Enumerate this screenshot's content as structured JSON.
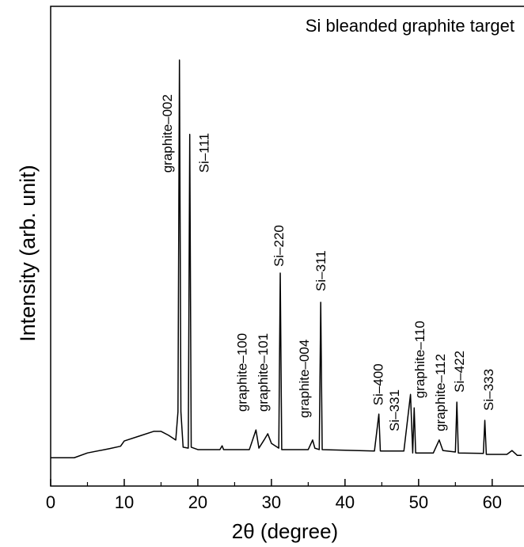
{
  "chart_data": {
    "type": "line",
    "title": "Si bleanded graphite target",
    "x_label": "2θ (degree)",
    "y_label": "Intensity (arb. unit)",
    "xlim": [
      0,
      64
    ],
    "ylim": [
      0,
      100
    ],
    "xticks": [
      0,
      10,
      20,
      30,
      40,
      50,
      60
    ],
    "xminorticks": [
      5,
      15,
      25,
      35,
      45,
      55
    ],
    "series": [
      {
        "color": "#000000",
        "x": [
          0,
          3.2,
          5,
          8,
          9.5,
          10,
          12,
          14,
          15,
          16,
          17,
          17.3,
          17.5,
          17.7,
          18,
          18.7,
          18.9,
          19.1,
          20,
          23,
          23.3,
          23.5,
          27,
          27.9,
          28.3,
          29,
          29.5,
          30,
          31,
          31.2,
          31.4,
          35,
          35.6,
          35.9,
          36.5,
          36.7,
          36.9,
          44,
          44.6,
          44.8,
          48,
          48.9,
          49.2,
          49.4,
          49.6,
          52,
          52.8,
          53.3,
          55,
          55.2,
          55.4,
          58.8,
          59,
          59.2,
          62,
          62.7,
          63.4,
          64
        ],
        "values": [
          5.9,
          5.9,
          6.9,
          7.8,
          8.3,
          9.4,
          10.4,
          11.4,
          11.4,
          10.6,
          9.6,
          15.5,
          88.8,
          15.5,
          8.1,
          7.9,
          73.3,
          8.1,
          7.6,
          7.6,
          8.4,
          7.6,
          7.6,
          11.7,
          7.9,
          9.6,
          10.9,
          8.9,
          7.9,
          44.4,
          7.6,
          7.6,
          9.6,
          7.9,
          7.6,
          38.3,
          7.6,
          7.3,
          15.0,
          7.3,
          7.3,
          19.1,
          6.9,
          16.3,
          6.9,
          6.9,
          9.6,
          7.4,
          7.1,
          17.5,
          6.9,
          6.8,
          13.7,
          6.6,
          6.6,
          7.4,
          6.4,
          6.4
        ]
      }
    ],
    "annotations": [
      {
        "text": "graphite–002",
        "x": 15.8,
        "y": 65.3
      },
      {
        "text": "Si–111",
        "x": 20.8,
        "y": 65.3
      },
      {
        "text": "graphite–100",
        "x": 26.0,
        "y": 15.5
      },
      {
        "text": "graphite–101",
        "x": 28.8,
        "y": 15.5
      },
      {
        "text": "Si–220",
        "x": 31.0,
        "y": 45.7
      },
      {
        "text": "graphite–004",
        "x": 34.4,
        "y": 14.2
      },
      {
        "text": "Si–311",
        "x": 36.7,
        "y": 40.6
      },
      {
        "text": "Si–400",
        "x": 44.5,
        "y": 16.8
      },
      {
        "text": "Si–331",
        "x": 46.7,
        "y": 11.4
      },
      {
        "text": "graphite–110",
        "x": 50.1,
        "y": 18.3
      },
      {
        "text": "graphite–112",
        "x": 52.9,
        "y": 11.4
      },
      {
        "text": "Si–422",
        "x": 55.5,
        "y": 19.5
      },
      {
        "text": "Si–333",
        "x": 59.5,
        "y": 15.7
      }
    ]
  }
}
